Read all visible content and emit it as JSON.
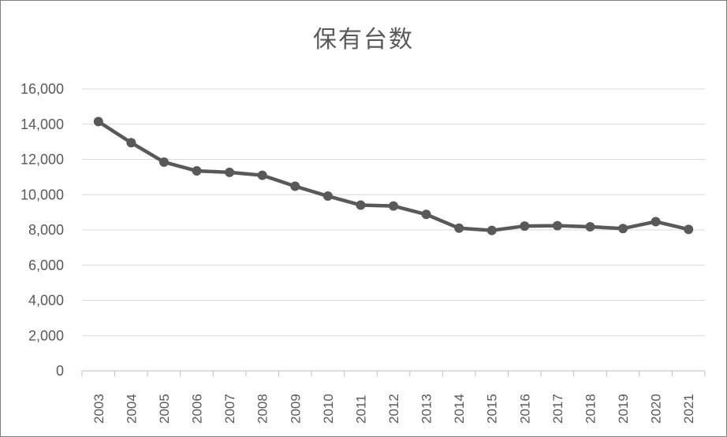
{
  "chart_data": {
    "type": "line",
    "title": "保有台数",
    "xlabel": "",
    "ylabel": "",
    "categories": [
      "2003",
      "2004",
      "2005",
      "2006",
      "2007",
      "2008",
      "2009",
      "2010",
      "2011",
      "2012",
      "2013",
      "2014",
      "2015",
      "2016",
      "2017",
      "2018",
      "2019",
      "2020",
      "2021"
    ],
    "series": [
      {
        "values": [
          14150,
          12950,
          11850,
          11350,
          11270,
          11100,
          10480,
          9920,
          9410,
          9360,
          8880,
          8100,
          7970,
          8220,
          8240,
          8180,
          8080,
          8470,
          8030
        ]
      }
    ],
    "ylim": [
      0,
      16000
    ],
    "yticks": [
      "0",
      "2,000",
      "4,000",
      "6,000",
      "8,000",
      "10,000",
      "12,000",
      "14,000",
      "16,000"
    ],
    "grid": true,
    "legend": "none",
    "colors": {
      "line": "#595959",
      "grid": "#d9d9d9",
      "axis": "#bfbfbf",
      "text": "#595959"
    }
  }
}
